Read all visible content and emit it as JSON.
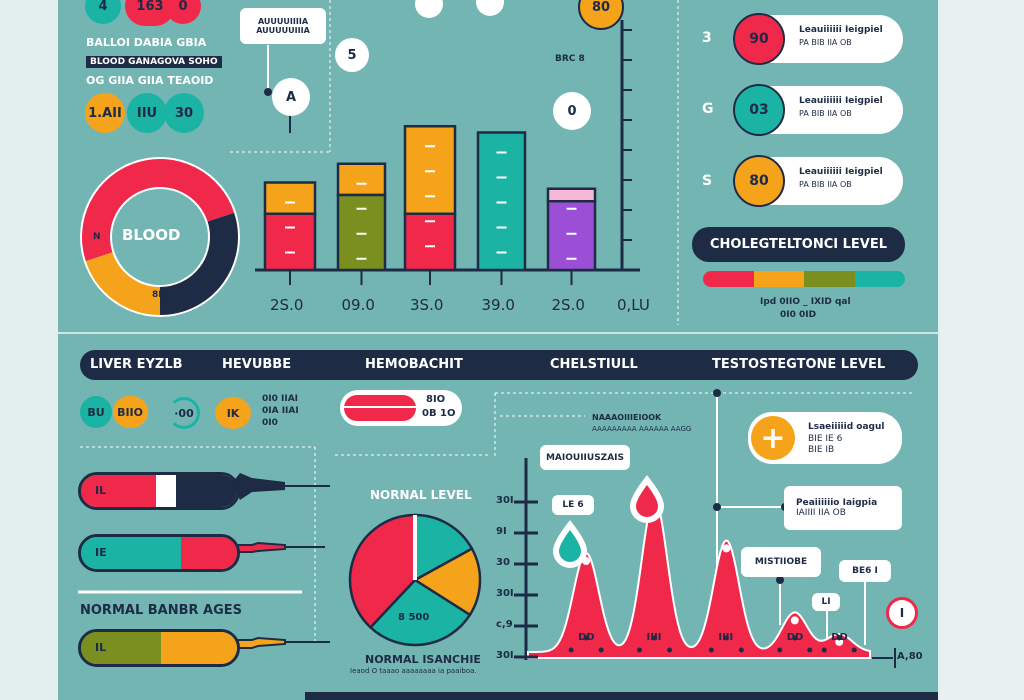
{
  "top_left": {
    "badge1": "4",
    "badge2": "163",
    "badge3": "0",
    "row1": "BALLOI DABIA GBIA",
    "row2": "BLOOD GANAGOVA SOHO",
    "row3": "OG GIIA GIIA TEAOID",
    "circle1": "1.AII",
    "circle2": "IIU",
    "circle3": "30"
  },
  "donut": {
    "label": "BLOOD",
    "left_label": "N",
    "bottom_label": "8E",
    "segments": [
      {
        "color": "#f0284a",
        "share": 0.5
      },
      {
        "color": "#1d2b45",
        "share": 0.3
      },
      {
        "color": "#f5a31a",
        "share": 0.2
      }
    ]
  },
  "bar_chart": {
    "callout": [
      "AUUUUIIIIA",
      "AUUUUUIIIA"
    ],
    "bubbles": [
      "A",
      "5",
      "0"
    ],
    "corner_badge": "80",
    "note": "BRC 8",
    "bars": [
      {
        "label": "2S.0",
        "segments": [
          {
            "color": "#f5a31a",
            "value": 0.25
          },
          {
            "color": "#f0284a",
            "value": 0.45
          }
        ]
      },
      {
        "label": "09.0",
        "segments": [
          {
            "color": "#f5a31a",
            "value": 0.25
          },
          {
            "color": "#7a8f1f",
            "value": 0.6
          }
        ]
      },
      {
        "label": "3S.0",
        "segments": [
          {
            "color": "#f5a31a",
            "value": 0.7
          },
          {
            "color": "#f0284a",
            "value": 0.45
          }
        ]
      },
      {
        "label": "39.0",
        "segments": [
          {
            "color": "#1bb3a4",
            "value": 1.1
          }
        ]
      },
      {
        "label": "2S.0",
        "segments": [
          {
            "color": "#f7b8d8",
            "value": 0.1
          },
          {
            "color": "#9a4fd6",
            "value": 0.55
          }
        ]
      }
    ],
    "axis_label": "0,LU"
  },
  "cards": [
    {
      "num": "3",
      "value": "90",
      "title": "Leauiiiiii Ieigpiel",
      "sub": "PA BIB IIA OB",
      "color": "#f0284a"
    },
    {
      "num": "G",
      "value": "03",
      "title": "Leauiiiiii Ieigpiel",
      "sub": "PA BIB IIA OB",
      "color": "#1bb3a4"
    },
    {
      "num": "S",
      "value": "80",
      "title": "Leauiiiiii Ieigpiel",
      "sub": "PA BIB IIA OB",
      "color": "#f5a31a"
    }
  ],
  "cholesterol": {
    "title": "CHOLEGTELTONCI LEVEL",
    "scale_colors": [
      "#f0284a",
      "#f5a31a",
      "#7a8f1f",
      "#1bb3a4"
    ],
    "legend": [
      "Ipd 0IIO _ IXID qal",
      "0I0 0ID"
    ]
  },
  "header": {
    "items": [
      "LIVER EYZLB",
      "HEVUBBE",
      "HEMOBACHIT",
      "CHELSTIULL",
      "TESTOSTEGTONE LEVEL"
    ]
  },
  "row2": {
    "pill1": "BU",
    "pill2": "BIIO",
    "gauge": "·00",
    "badge": "IK",
    "list": [
      "0I0 IIAI",
      "0IA IIAI",
      "0I0"
    ],
    "capsule_lines": [
      "8IO",
      "0B 1O"
    ]
  },
  "syringes": [
    {
      "label": "IL",
      "colors": [
        "#f0284a",
        "#fff",
        "#1d2b45"
      ]
    },
    {
      "label": "IE",
      "colors": [
        "#1bb3a4",
        "#f0284a"
      ]
    },
    {
      "label": "IL",
      "colors": [
        "#7a8f1f",
        "#f5a31a"
      ]
    }
  ],
  "normal_ranges": "NORMAL BANBR AGES",
  "pie": {
    "title": "NORNAL LEVEL",
    "center_label": "8 500",
    "footer": "NORMAL ISANCHIE",
    "footer_sub": "Ieaod O taaao aaaaaaaa ia paaiboa.",
    "slices": [
      {
        "color": "#1bb3a4",
        "share": 0.17
      },
      {
        "color": "#f5a31a",
        "share": 0.17
      },
      {
        "color": "#1bb3a4",
        "share": 0.28
      },
      {
        "color": "#f0284a",
        "share": 0.38
      }
    ]
  },
  "area_chart": {
    "y_ticks": [
      "30I",
      "9I",
      "30",
      "30I",
      "c,9",
      "30I"
    ],
    "x_end_label": "A,80",
    "annotation": [
      "NAAAOIIIEIOOK",
      "AAAAAAAAA AAAAAA AAGG"
    ],
    "labels": [
      "MAIOUIIUSZAIS",
      "LE 6",
      "MISTIIOBE",
      "BE6 I",
      "LI"
    ],
    "cards": [
      {
        "title": "Lsaeiiiiid oagul",
        "sub": [
          "BIE IE 6",
          "BIE IB"
        ]
      },
      {
        "title": "Peaiiiiiio Iaigpia",
        "sub": [
          "IAIIII IIA OB"
        ]
      }
    ],
    "bubble_icon": "I",
    "peak_labels": [
      "DD",
      "IIII",
      "IIII",
      "DD",
      "DD"
    ],
    "peaks": [
      {
        "x": 0.17,
        "h": 0.55
      },
      {
        "x": 0.37,
        "h": 0.85
      },
      {
        "x": 0.58,
        "h": 0.62
      },
      {
        "x": 0.78,
        "h": 0.22
      },
      {
        "x": 0.91,
        "h": 0.1
      }
    ]
  }
}
